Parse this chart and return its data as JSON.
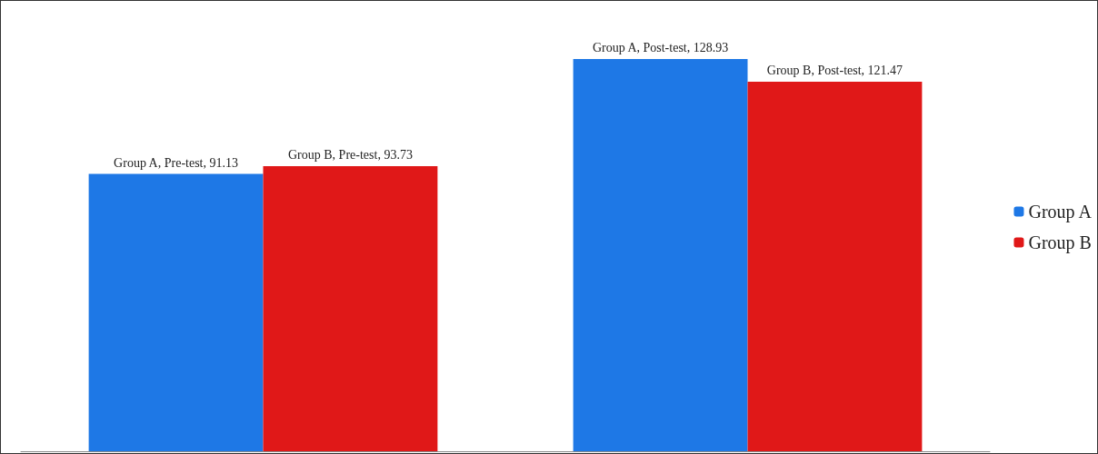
{
  "chart_data": {
    "type": "bar",
    "categories": [
      null,
      null
    ],
    "ylim": [
      0,
      148
    ],
    "legend": "right",
    "series": [
      {
        "name": "Group A",
        "color": "#1e78e6",
        "values": [
          91.13,
          128.93
        ],
        "value_labels": [
          "Group A, Pre-test, 91.13",
          "Group A, Post-test, 128.93"
        ]
      },
      {
        "name": "Group B",
        "color": "#e01818",
        "values": [
          93.73,
          121.47
        ],
        "value_labels": [
          "Group B, Pre-test, 93.73",
          "Group B, Post-test, 121.47"
        ]
      }
    ]
  }
}
